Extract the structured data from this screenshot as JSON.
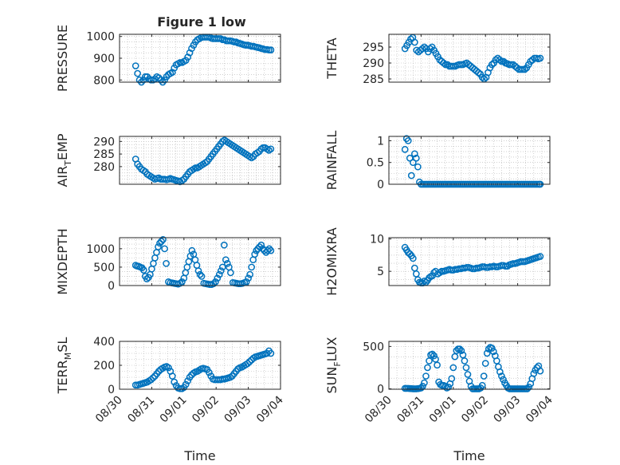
{
  "figure": {
    "title": "Figure 1 low",
    "xlabel": "Time",
    "xlabel_axes": [
      6,
      7
    ],
    "x_categories": [
      "08/30",
      "08/31",
      "09/01",
      "09/02",
      "09/03",
      "09/04"
    ]
  },
  "colors": {
    "marker": "#0072BD",
    "axis": "#262626",
    "grid": "#b3b3b3"
  },
  "chart_data": [
    {
      "type": "scatter",
      "marker": "circle",
      "grid": "on",
      "ylabel": "PRESSURE",
      "ylim": [
        790,
        1010
      ],
      "yticks": [
        800,
        900,
        1000
      ],
      "xlim": [
        0,
        5
      ],
      "x": [
        0.5,
        0.56,
        0.62,
        0.68,
        0.74,
        0.8,
        0.86,
        0.92,
        0.98,
        1.04,
        1.1,
        1.16,
        1.22,
        1.28,
        1.34,
        1.4,
        1.46,
        1.52,
        1.58,
        1.64,
        1.7,
        1.76,
        1.82,
        1.88,
        1.94,
        2.0,
        2.06,
        2.12,
        2.18,
        2.24,
        2.3,
        2.36,
        2.42,
        2.48,
        2.54,
        2.6,
        2.66,
        2.72,
        2.78,
        2.84,
        2.9,
        2.96,
        3.02,
        3.08,
        3.14,
        3.2,
        3.26,
        3.32,
        3.38,
        3.44,
        3.5,
        3.56,
        3.62,
        3.68,
        3.74,
        3.8,
        3.86,
        3.92,
        3.98,
        4.04,
        4.1,
        4.16,
        4.22,
        4.28,
        4.34,
        4.4,
        4.46,
        4.52,
        4.58,
        4.64,
        4.7
      ],
      "y": [
        865,
        830,
        800,
        790,
        800,
        815,
        815,
        805,
        800,
        800,
        805,
        815,
        810,
        800,
        790,
        800,
        815,
        825,
        830,
        835,
        855,
        870,
        875,
        880,
        880,
        885,
        890,
        905,
        925,
        945,
        960,
        975,
        985,
        990,
        995,
        997,
        997,
        997,
        997,
        993,
        990,
        990,
        990,
        990,
        990,
        985,
        985,
        980,
        980,
        980,
        978,
        975,
        975,
        970,
        968,
        965,
        962,
        960,
        960,
        958,
        955,
        955,
        952,
        950,
        948,
        945,
        943,
        940,
        940,
        938,
        938
      ]
    },
    {
      "type": "scatter",
      "marker": "circle",
      "grid": "on",
      "ylabel": "THETA",
      "ylim": [
        284,
        299
      ],
      "yticks": [
        285,
        290,
        295
      ],
      "xlim": [
        0,
        5
      ],
      "x": [
        0.5,
        0.56,
        0.62,
        0.68,
        0.74,
        0.8,
        0.86,
        0.92,
        0.98,
        1.04,
        1.1,
        1.16,
        1.22,
        1.28,
        1.34,
        1.4,
        1.46,
        1.52,
        1.58,
        1.64,
        1.7,
        1.76,
        1.82,
        1.88,
        1.94,
        2.0,
        2.06,
        2.12,
        2.18,
        2.24,
        2.3,
        2.36,
        2.42,
        2.48,
        2.54,
        2.6,
        2.66,
        2.72,
        2.78,
        2.84,
        2.9,
        2.96,
        3.02,
        3.08,
        3.14,
        3.2,
        3.26,
        3.32,
        3.38,
        3.44,
        3.5,
        3.56,
        3.62,
        3.68,
        3.74,
        3.8,
        3.86,
        3.92,
        3.98,
        4.04,
        4.1,
        4.16,
        4.22,
        4.28,
        4.34,
        4.4,
        4.46,
        4.52,
        4.58,
        4.64,
        4.7
      ],
      "y": [
        294.5,
        295.5,
        296.5,
        297.5,
        298,
        296.5,
        294,
        293.5,
        294,
        294.5,
        295,
        294.5,
        293.5,
        294.5,
        295,
        294,
        293,
        292,
        291,
        290.5,
        290,
        289.5,
        289.5,
        289,
        289,
        289,
        289,
        289.3,
        289.5,
        289.5,
        289.5,
        289.8,
        290,
        289.5,
        289,
        288.5,
        288,
        287.5,
        287,
        286.5,
        285.5,
        285,
        285.5,
        287,
        288.5,
        289.5,
        290,
        291,
        291.5,
        291,
        290.5,
        290.5,
        290,
        289.8,
        289.5,
        289.5,
        289.5,
        289,
        288.5,
        288,
        288,
        288,
        288,
        288.5,
        289.5,
        290.5,
        291,
        291.5,
        291.5,
        291.3,
        291.5
      ]
    },
    {
      "type": "scatter",
      "marker": "circle",
      "grid": "on",
      "ylabel": "AIR",
      "ylabel_sub": "T",
      "ylabel_rest": "EMP",
      "ylim": [
        273,
        292
      ],
      "yticks": [
        280,
        285,
        290
      ],
      "xlim": [
        0,
        5
      ],
      "x": [
        0.5,
        0.56,
        0.62,
        0.68,
        0.74,
        0.8,
        0.86,
        0.92,
        0.98,
        1.04,
        1.1,
        1.16,
        1.22,
        1.28,
        1.34,
        1.4,
        1.46,
        1.52,
        1.58,
        1.64,
        1.7,
        1.76,
        1.82,
        1.88,
        1.94,
        2.0,
        2.06,
        2.12,
        2.18,
        2.24,
        2.3,
        2.36,
        2.42,
        2.48,
        2.54,
        2.6,
        2.66,
        2.72,
        2.78,
        2.84,
        2.9,
        2.96,
        3.02,
        3.08,
        3.14,
        3.2,
        3.26,
        3.32,
        3.38,
        3.44,
        3.5,
        3.56,
        3.62,
        3.68,
        3.74,
        3.8,
        3.86,
        3.92,
        3.98,
        4.04,
        4.1,
        4.16,
        4.22,
        4.28,
        4.34,
        4.4,
        4.46,
        4.52,
        4.58,
        4.64,
        4.7
      ],
      "y": [
        283,
        281,
        280,
        279,
        278.5,
        278,
        277,
        276.5,
        276,
        275.5,
        275,
        275.3,
        275.5,
        275,
        275,
        275,
        274.8,
        275,
        275.3,
        275,
        274.8,
        274.5,
        274.3,
        274,
        274.5,
        275,
        276,
        277,
        278,
        278.5,
        279,
        279.5,
        279.5,
        280,
        280.5,
        281,
        281.5,
        282,
        283,
        284,
        285,
        286,
        287,
        288,
        289,
        290,
        290.5,
        290,
        289.5,
        289,
        288.5,
        288,
        287.5,
        287,
        286.5,
        286,
        285.5,
        285,
        284.5,
        284,
        283.5,
        284,
        285,
        285.5,
        286,
        287,
        287.5,
        287.5,
        287,
        286.5,
        287
      ]
    },
    {
      "type": "scatter",
      "marker": "circle",
      "grid": "on",
      "ylabel": "RAINFALL",
      "ylim": [
        0,
        1.1
      ],
      "yticks": [
        0,
        0.5,
        1
      ],
      "xlim": [
        0,
        5
      ],
      "x": [
        0.5,
        0.55,
        0.6,
        0.65,
        0.7,
        0.75,
        0.8,
        0.85,
        0.9,
        0.95,
        1.0,
        1.06,
        1.12,
        1.18,
        1.24,
        1.3,
        1.36,
        1.42,
        1.48,
        1.54,
        1.6,
        1.66,
        1.72,
        1.78,
        1.84,
        1.9,
        1.96,
        2.02,
        2.08,
        2.14,
        2.2,
        2.26,
        2.32,
        2.38,
        2.44,
        2.5,
        2.56,
        2.62,
        2.68,
        2.74,
        2.8,
        2.86,
        2.92,
        2.98,
        3.04,
        3.1,
        3.16,
        3.22,
        3.28,
        3.34,
        3.4,
        3.46,
        3.52,
        3.58,
        3.64,
        3.7,
        3.76,
        3.82,
        3.88,
        3.94,
        4.0,
        4.06,
        4.12,
        4.18,
        4.24,
        4.3,
        4.36,
        4.42,
        4.48,
        4.54,
        4.6,
        4.66,
        4.7
      ],
      "y": [
        0.8,
        1.05,
        1.0,
        0.6,
        0.2,
        0.5,
        0.7,
        0.6,
        0.4,
        0.05,
        0,
        0,
        0,
        0,
        0,
        0,
        0,
        0,
        0,
        0,
        0,
        0,
        0,
        0,
        0,
        0,
        0,
        0,
        0,
        0,
        0,
        0,
        0,
        0,
        0,
        0,
        0,
        0,
        0,
        0,
        0,
        0,
        0,
        0,
        0,
        0,
        0,
        0,
        0,
        0,
        0,
        0,
        0,
        0,
        0,
        0,
        0,
        0,
        0,
        0,
        0,
        0,
        0,
        0,
        0,
        0,
        0,
        0,
        0,
        0,
        0,
        0,
        0
      ]
    },
    {
      "type": "scatter",
      "marker": "circle",
      "grid": "on",
      "ylabel": "MIXDEPTH",
      "ylim": [
        0,
        1300
      ],
      "yticks": [
        0,
        500,
        1000
      ],
      "xlim": [
        0,
        5
      ],
      "x": [
        0.5,
        0.55,
        0.6,
        0.65,
        0.7,
        0.75,
        0.8,
        0.85,
        0.9,
        0.95,
        1.0,
        1.05,
        1.1,
        1.15,
        1.2,
        1.25,
        1.3,
        1.35,
        1.4,
        1.45,
        1.52,
        1.58,
        1.64,
        1.7,
        1.76,
        1.82,
        1.88,
        1.94,
        2.0,
        2.05,
        2.1,
        2.15,
        2.2,
        2.25,
        2.3,
        2.35,
        2.4,
        2.45,
        2.5,
        2.55,
        2.62,
        2.68,
        2.74,
        2.8,
        2.86,
        2.92,
        2.98,
        3.04,
        3.1,
        3.15,
        3.2,
        3.25,
        3.3,
        3.35,
        3.4,
        3.45,
        3.52,
        3.58,
        3.64,
        3.7,
        3.76,
        3.82,
        3.88,
        3.94,
        4.0,
        4.05,
        4.1,
        4.15,
        4.2,
        4.25,
        4.3,
        4.35,
        4.4,
        4.45,
        4.5,
        4.55,
        4.6,
        4.65,
        4.7
      ],
      "y": [
        550,
        530,
        520,
        500,
        480,
        420,
        250,
        180,
        220,
        300,
        450,
        600,
        750,
        900,
        1050,
        1150,
        1200,
        1250,
        1000,
        600,
        100,
        80,
        70,
        60,
        50,
        40,
        60,
        100,
        200,
        350,
        500,
        650,
        800,
        950,
        850,
        700,
        550,
        400,
        300,
        250,
        60,
        50,
        40,
        30,
        30,
        50,
        100,
        200,
        300,
        400,
        500,
        1100,
        700,
        600,
        500,
        350,
        80,
        70,
        60,
        50,
        50,
        60,
        80,
        100,
        200,
        300,
        500,
        700,
        850,
        950,
        1000,
        1050,
        1100,
        1000,
        950,
        900,
        950,
        1000,
        950
      ]
    },
    {
      "type": "scatter",
      "marker": "circle",
      "grid": "on",
      "ylabel": "H2OMIXRA",
      "ylim": [
        2.8,
        10.2
      ],
      "yticks": [
        5,
        10
      ],
      "xlim": [
        0,
        5
      ],
      "x": [
        0.5,
        0.55,
        0.6,
        0.65,
        0.7,
        0.75,
        0.8,
        0.85,
        0.9,
        0.95,
        1.0,
        1.05,
        1.1,
        1.15,
        1.2,
        1.25,
        1.3,
        1.35,
        1.4,
        1.45,
        1.52,
        1.58,
        1.64,
        1.7,
        1.76,
        1.82,
        1.88,
        1.94,
        2.0,
        2.06,
        2.12,
        2.18,
        2.24,
        2.3,
        2.36,
        2.42,
        2.48,
        2.54,
        2.6,
        2.66,
        2.72,
        2.78,
        2.84,
        2.9,
        2.96,
        3.02,
        3.08,
        3.14,
        3.2,
        3.26,
        3.32,
        3.38,
        3.44,
        3.5,
        3.56,
        3.62,
        3.68,
        3.74,
        3.8,
        3.86,
        3.92,
        3.98,
        4.04,
        4.1,
        4.16,
        4.22,
        4.28,
        4.34,
        4.4,
        4.46,
        4.52,
        4.58,
        4.64,
        4.7
      ],
      "y": [
        8.7,
        8.3,
        7.9,
        7.7,
        7.4,
        7,
        5.5,
        4.6,
        3.7,
        3.3,
        3.2,
        3.2,
        3.5,
        3.3,
        3.6,
        4,
        4.2,
        4.3,
        4.8,
        5,
        4.6,
        4.8,
        5,
        5,
        5.1,
        5.2,
        5.3,
        5.2,
        5.2,
        5.3,
        5.3,
        5.4,
        5.4,
        5.5,
        5.5,
        5.6,
        5.6,
        5.5,
        5.4,
        5.4,
        5.5,
        5.5,
        5.6,
        5.7,
        5.7,
        5.6,
        5.6,
        5.7,
        5.7,
        5.8,
        5.7,
        5.7,
        5.8,
        5.9,
        5.9,
        5.8,
        5.8,
        6,
        6.1,
        6.2,
        6.2,
        6.3,
        6.4,
        6.5,
        6.5,
        6.5,
        6.6,
        6.7,
        6.8,
        6.9,
        7,
        7.1,
        7.2,
        7.3
      ]
    },
    {
      "type": "scatter",
      "marker": "circle",
      "grid": "on",
      "ylabel": "TERR",
      "ylabel_sub": "M",
      "ylabel_rest": "SL",
      "ylim": [
        0,
        400
      ],
      "yticks": [
        0,
        200,
        400
      ],
      "xlim": [
        0,
        5
      ],
      "x": [
        0.5,
        0.56,
        0.62,
        0.68,
        0.74,
        0.8,
        0.86,
        0.92,
        0.98,
        1.04,
        1.1,
        1.16,
        1.22,
        1.28,
        1.34,
        1.4,
        1.46,
        1.52,
        1.58,
        1.64,
        1.7,
        1.76,
        1.82,
        1.88,
        1.94,
        2.0,
        2.06,
        2.12,
        2.18,
        2.24,
        2.3,
        2.36,
        2.42,
        2.48,
        2.54,
        2.6,
        2.66,
        2.72,
        2.78,
        2.84,
        2.9,
        2.96,
        3.02,
        3.08,
        3.14,
        3.2,
        3.26,
        3.32,
        3.38,
        3.44,
        3.5,
        3.56,
        3.62,
        3.68,
        3.74,
        3.8,
        3.86,
        3.92,
        3.98,
        4.04,
        4.1,
        4.16,
        4.22,
        4.28,
        4.34,
        4.4,
        4.46,
        4.52,
        4.58,
        4.64,
        4.7
      ],
      "y": [
        35,
        35,
        40,
        45,
        50,
        55,
        60,
        70,
        80,
        95,
        110,
        130,
        150,
        165,
        175,
        185,
        190,
        180,
        150,
        110,
        60,
        30,
        10,
        5,
        5,
        15,
        40,
        70,
        100,
        120,
        135,
        145,
        150,
        160,
        170,
        175,
        170,
        165,
        140,
        110,
        85,
        80,
        80,
        80,
        80,
        85,
        85,
        90,
        95,
        100,
        110,
        130,
        150,
        170,
        180,
        185,
        195,
        205,
        215,
        230,
        245,
        260,
        270,
        275,
        280,
        285,
        290,
        295,
        300,
        320,
        300
      ]
    },
    {
      "type": "scatter",
      "marker": "circle",
      "grid": "on",
      "ylabel": "SUN",
      "ylabel_sub": "F",
      "ylabel_rest": "LUX",
      "ylim": [
        -5,
        560
      ],
      "yticks": [
        0,
        500
      ],
      "xlim": [
        0,
        5
      ],
      "x": [
        0.5,
        0.55,
        0.6,
        0.65,
        0.7,
        0.75,
        0.8,
        0.85,
        0.9,
        0.95,
        1.0,
        1.05,
        1.1,
        1.15,
        1.2,
        1.25,
        1.3,
        1.35,
        1.4,
        1.45,
        1.5,
        1.55,
        1.6,
        1.65,
        1.7,
        1.75,
        1.8,
        1.85,
        1.9,
        1.95,
        2.0,
        2.05,
        2.1,
        2.15,
        2.2,
        2.25,
        2.3,
        2.35,
        2.4,
        2.45,
        2.5,
        2.55,
        2.6,
        2.65,
        2.7,
        2.75,
        2.8,
        2.85,
        2.9,
        2.95,
        3.0,
        3.05,
        3.1,
        3.15,
        3.2,
        3.25,
        3.3,
        3.35,
        3.4,
        3.45,
        3.5,
        3.55,
        3.6,
        3.65,
        3.7,
        3.75,
        3.8,
        3.85,
        3.9,
        3.95,
        4.0,
        4.05,
        4.1,
        4.15,
        4.2,
        4.25,
        4.3,
        4.35,
        4.4,
        4.45,
        4.5,
        4.55,
        4.6,
        4.65,
        4.7
      ],
      "y": [
        5,
        5,
        5,
        3,
        2,
        0,
        0,
        0,
        2,
        5,
        10,
        30,
        70,
        150,
        250,
        330,
        400,
        410,
        390,
        350,
        280,
        80,
        50,
        40,
        40,
        30,
        10,
        20,
        60,
        120,
        250,
        380,
        450,
        470,
        470,
        450,
        400,
        330,
        250,
        170,
        90,
        30,
        0,
        0,
        0,
        0,
        0,
        10,
        40,
        150,
        300,
        420,
        470,
        490,
        480,
        440,
        390,
        330,
        260,
        200,
        150,
        110,
        70,
        40,
        10,
        0,
        0,
        0,
        0,
        0,
        0,
        0,
        0,
        0,
        0,
        0,
        0,
        20,
        60,
        120,
        180,
        220,
        250,
        270,
        210
      ]
    }
  ]
}
